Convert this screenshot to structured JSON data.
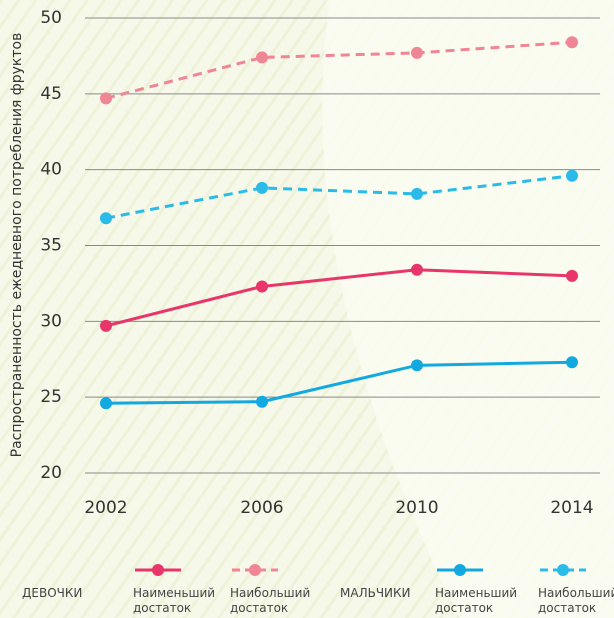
{
  "chart_data": {
    "type": "line",
    "y_label": "Распространенность ежедневного потребления фруктов",
    "categories": [
      "2002",
      "2006",
      "2010",
      "2014"
    ],
    "ylim": [
      20,
      50
    ],
    "yticks": [
      20,
      25,
      30,
      35,
      40,
      45,
      50
    ],
    "grid": true,
    "legend_groups": [
      "ДЕВОЧКИ",
      "МАЛЬЧИКИ"
    ],
    "series": [
      {
        "name": "Наименьший достаток",
        "color": "#e8356a",
        "dashed": false,
        "values": [
          29.7,
          32.3,
          33.4,
          33.0
        ]
      },
      {
        "name": "Наибольший достаток",
        "color": "#ef8595",
        "dashed": true,
        "values": [
          44.7,
          47.4,
          47.7,
          48.4
        ]
      },
      {
        "name": "Наименьший достаток",
        "color": "#12a8e0",
        "dashed": false,
        "values": [
          24.6,
          24.7,
          27.1,
          27.3
        ]
      },
      {
        "name": "Наибольший достаток",
        "color": "#2bbbe8",
        "dashed": true,
        "values": [
          36.8,
          38.8,
          38.4,
          39.6
        ]
      }
    ]
  }
}
